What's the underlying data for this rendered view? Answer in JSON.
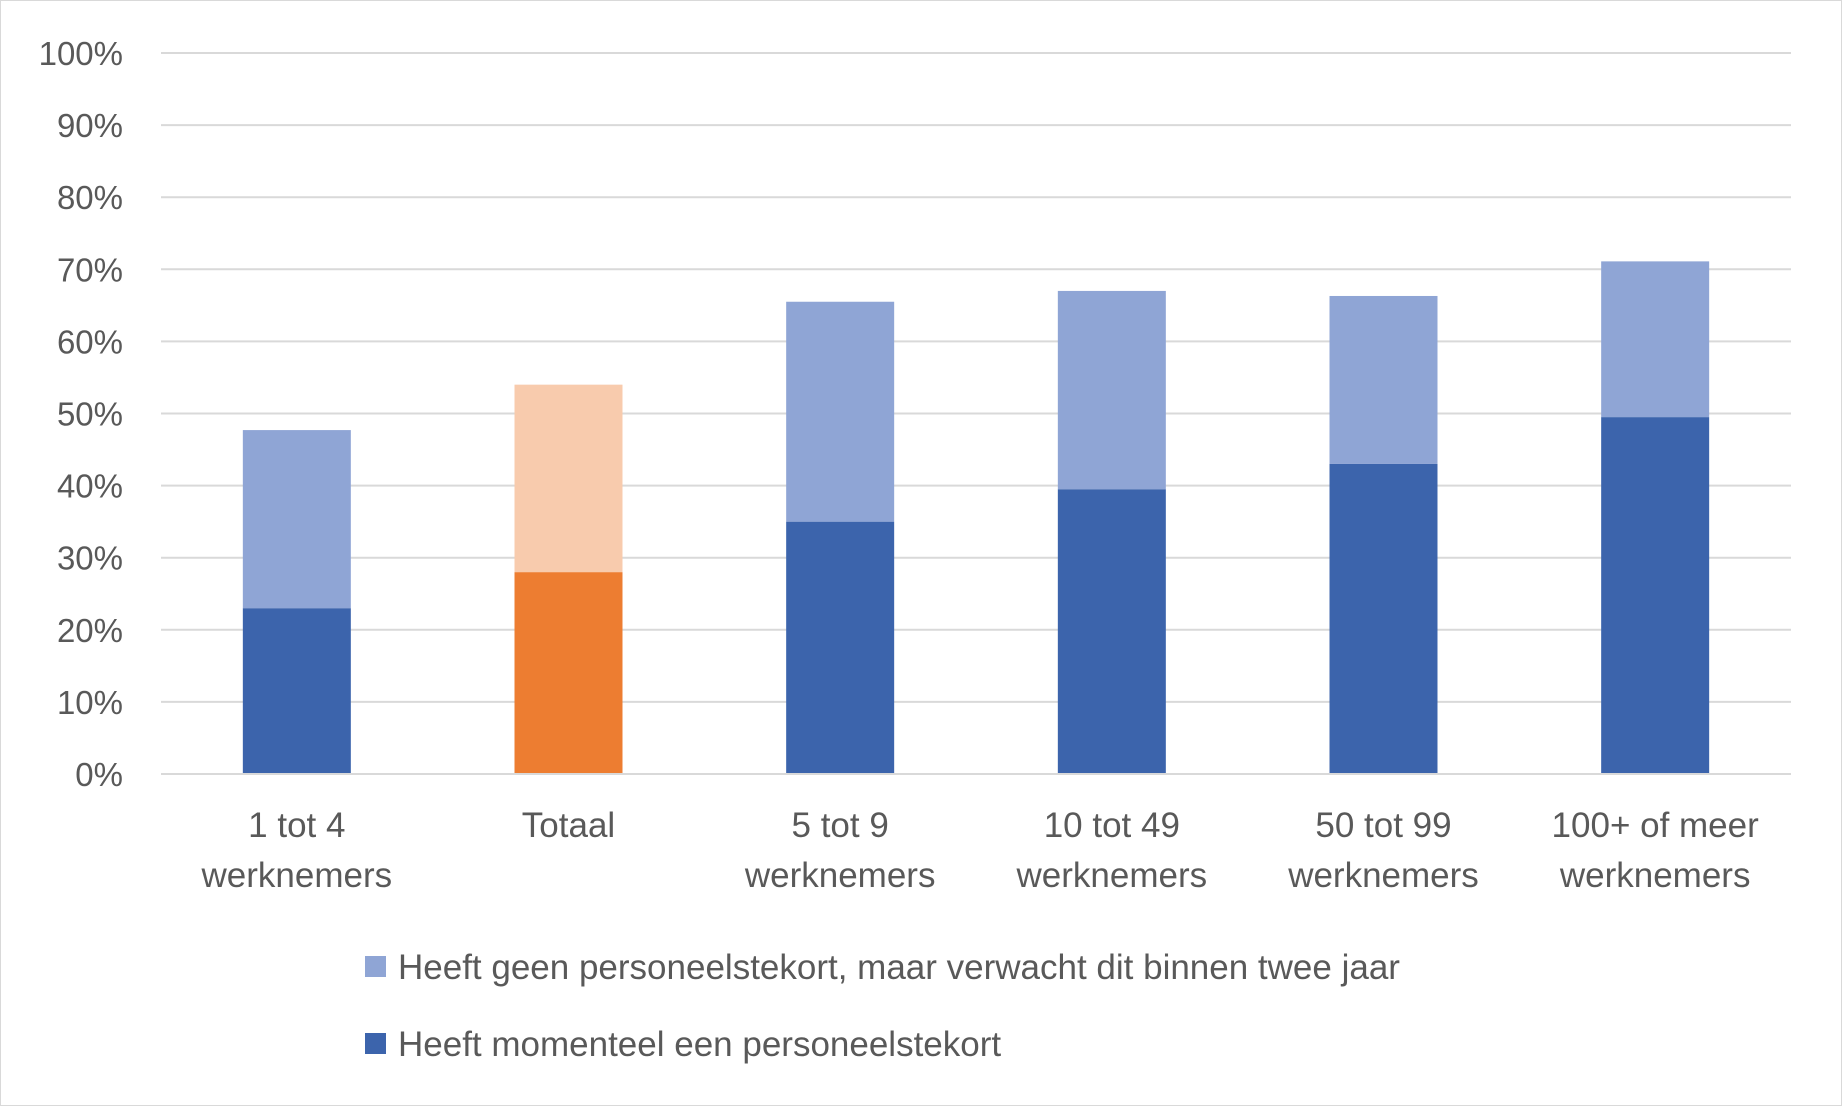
{
  "chart_data": {
    "type": "bar",
    "stacked": true,
    "categories": [
      [
        "1 tot 4",
        "werknemers"
      ],
      [
        "Totaal"
      ],
      [
        "5 tot 9",
        "werknemers"
      ],
      [
        "10 tot 49",
        "werknemers"
      ],
      [
        "50 tot 99",
        "werknemers"
      ],
      [
        "100+ of meer",
        "werknemers"
      ]
    ],
    "series": [
      {
        "name": "Heeft momenteel een personeelstekort",
        "values": [
          23,
          28,
          35,
          39.5,
          43,
          49.5
        ],
        "color": "#3c64ac",
        "highlight_color": "#ed7d31"
      },
      {
        "name": "Heeft geen personeelstekort, maar verwacht dit binnen twee jaar",
        "values": [
          24.7,
          26,
          30.5,
          27.5,
          23.3,
          21.6
        ],
        "color": "#8fa5d5",
        "highlight_color": "#f8cbad"
      }
    ],
    "highlight_category_index": 1,
    "ylim": [
      0,
      100
    ],
    "yticks": [
      0,
      10,
      20,
      30,
      40,
      50,
      60,
      70,
      80,
      90,
      100
    ],
    "ytick_suffix": "%",
    "grid": true,
    "legend": {
      "position": "bottom",
      "order": [
        1,
        0
      ]
    }
  }
}
